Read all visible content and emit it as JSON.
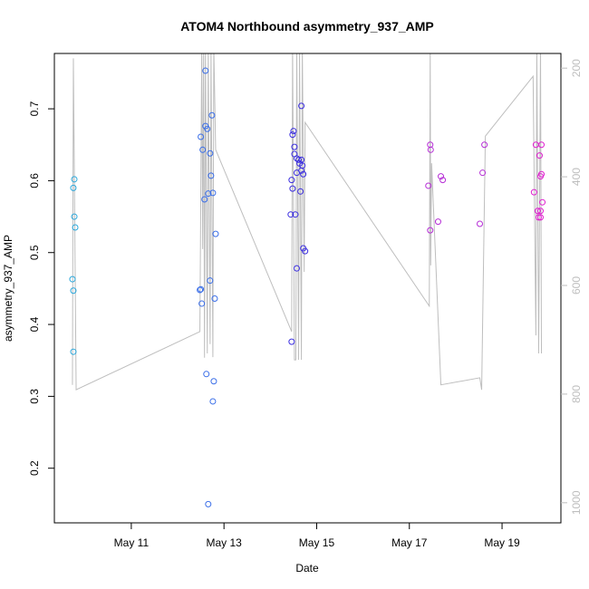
{
  "chart_data": {
    "type": "scatter",
    "title": "ATOM4 Northbound asymmetry_937_AMP",
    "x_label": "Date",
    "y_label": "asymmetry_937_AMP",
    "xlim": [
      9.34,
      20.27
    ],
    "xticks": [
      {
        "value": 11,
        "label": "May 11"
      },
      {
        "value": 13,
        "label": "May 13"
      },
      {
        "value": 15,
        "label": "May 15"
      },
      {
        "value": 17,
        "label": "May 17"
      },
      {
        "value": 19,
        "label": "May 19"
      }
    ],
    "ylim": [
      0.124,
      0.777
    ],
    "yticks": [
      0.2,
      0.3,
      0.4,
      0.5,
      0.6,
      0.7
    ],
    "y2lim": [
      1037,
      173
    ],
    "y2ticks": [
      200,
      400,
      600,
      800,
      1000
    ],
    "series": [
      {
        "type": "line",
        "axis": "y2",
        "color": "#bebebe",
        "x": [
          9.73,
          9.75,
          9.81,
          12.48,
          12.52,
          12.54,
          12.56,
          12.58,
          12.6,
          12.64,
          12.66,
          12.7,
          12.72,
          12.76,
          12.78,
          12.82,
          14.46,
          14.48,
          14.52,
          14.55,
          14.57,
          14.61,
          14.63,
          14.67,
          14.69,
          14.73,
          14.75,
          17.43,
          17.45,
          17.46,
          17.48,
          17.68,
          18.52,
          18.56,
          18.64,
          19.67,
          19.73,
          19.75,
          19.79,
          19.83,
          19.85
        ],
        "values": [
          783,
          182,
          792,
          685,
          160,
          533,
          160,
          733,
          160,
          725,
          160,
          708,
          160,
          732,
          160,
          350,
          685,
          160,
          737,
          737,
          160,
          737,
          160,
          737,
          160,
          575,
          300,
          638,
          160,
          563,
          375,
          783,
          770,
          792,
          325,
          215,
          692,
          160,
          725,
          160,
          725
        ]
      },
      {
        "type": "scatter",
        "color": "#2aa8dc",
        "x": [
          9.77,
          9.75,
          9.77,
          9.79,
          9.73,
          9.75,
          9.75
        ],
        "values": [
          0.602,
          0.59,
          0.55,
          0.535,
          0.463,
          0.447,
          0.362
        ]
      },
      {
        "type": "scatter",
        "color": "#3a6ee8",
        "x": [
          12.6,
          12.74,
          12.5,
          12.6,
          12.64,
          12.54,
          12.7,
          12.72,
          12.76,
          12.66,
          12.58,
          12.82,
          12.7,
          12.5,
          12.48,
          12.8,
          12.52,
          12.62,
          12.78,
          12.76,
          12.66
        ],
        "values": [
          0.753,
          0.691,
          0.661,
          0.676,
          0.672,
          0.643,
          0.638,
          0.607,
          0.583,
          0.582,
          0.574,
          0.526,
          0.461,
          0.449,
          0.448,
          0.436,
          0.429,
          0.331,
          0.321,
          0.293,
          0.15
        ]
      },
      {
        "type": "scatter",
        "color": "#3b2ee0",
        "x": [
          14.67,
          14.5,
          14.48,
          14.52,
          14.52,
          14.57,
          14.61,
          14.67,
          14.63,
          14.69,
          14.67,
          14.57,
          14.71,
          14.46,
          14.48,
          14.65,
          14.44,
          14.54,
          14.71,
          14.75,
          14.57,
          14.46
        ],
        "values": [
          0.704,
          0.669,
          0.664,
          0.647,
          0.637,
          0.631,
          0.629,
          0.629,
          0.624,
          0.621,
          0.614,
          0.611,
          0.609,
          0.601,
          0.589,
          0.585,
          0.553,
          0.553,
          0.506,
          0.502,
          0.478,
          0.376
        ]
      },
      {
        "type": "scatter",
        "color": "#b62ed6",
        "x": [
          17.45,
          17.46,
          17.41,
          17.68,
          17.72,
          17.62,
          17.45,
          18.62,
          18.58,
          18.52
        ],
        "values": [
          0.65,
          0.643,
          0.593,
          0.606,
          0.601,
          0.543,
          0.531,
          0.65,
          0.611,
          0.54
        ]
      },
      {
        "type": "scatter",
        "color": "#e020d0",
        "x": [
          19.73,
          19.85,
          19.81,
          19.85,
          19.83,
          19.69,
          19.87,
          19.77,
          19.83,
          19.79,
          19.83
        ],
        "values": [
          0.65,
          0.65,
          0.635,
          0.609,
          0.606,
          0.584,
          0.57,
          0.558,
          0.558,
          0.549,
          0.549
        ]
      }
    ]
  }
}
